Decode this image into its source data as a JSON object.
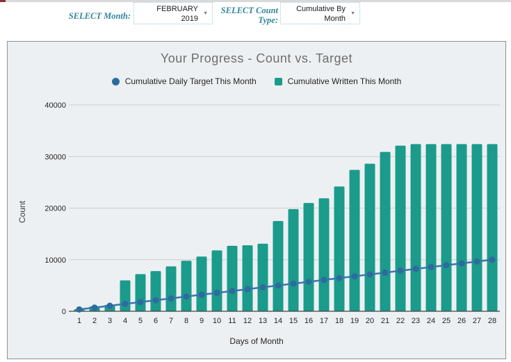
{
  "page": {
    "top_strip_color": "#d9d9d9",
    "red_indicator_color": "#8b2f36"
  },
  "slicers": {
    "month": {
      "label": "SELECT Month:",
      "value_lines": [
        "FEBRUARY",
        "2019"
      ],
      "arrow": "▼"
    },
    "count_type": {
      "label_lines": [
        "SELECT Count",
        "Type:"
      ],
      "value_lines": [
        "Cumulative By",
        "Month"
      ],
      "arrow": "▼"
    }
  },
  "chart_data": {
    "type": "bar",
    "title": "Your Progress - Count vs. Target",
    "xlabel": "Days of Month",
    "ylabel": "Count",
    "ylim": [
      0,
      40000
    ],
    "yticks": [
      0,
      10000,
      20000,
      30000,
      40000
    ],
    "grid": true,
    "legend_position": "top",
    "categories": [
      1,
      2,
      3,
      4,
      5,
      6,
      7,
      8,
      9,
      10,
      11,
      12,
      13,
      14,
      15,
      16,
      17,
      18,
      19,
      20,
      21,
      22,
      23,
      24,
      25,
      26,
      27,
      28
    ],
    "series": [
      {
        "name": "Cumulative Daily Target This Month",
        "type": "line",
        "marker": "circle",
        "color": "#2d6b9f",
        "line_color": "#3a76ab",
        "values": [
          357,
          714,
          1071,
          1429,
          1786,
          2143,
          2500,
          2857,
          3214,
          3571,
          3929,
          4286,
          4643,
          5000,
          5357,
          5714,
          6071,
          6429,
          6786,
          7143,
          7500,
          7857,
          8214,
          8571,
          8929,
          9286,
          9643,
          10000
        ]
      },
      {
        "name": "Cumulative Written This Month",
        "type": "bar",
        "marker": "square",
        "color": "#1a9b8b",
        "values": [
          400,
          950,
          1250,
          6000,
          7200,
          7800,
          8700,
          9800,
          10600,
          11800,
          12700,
          12800,
          13100,
          17500,
          19800,
          21000,
          21900,
          24200,
          27400,
          28600,
          30900,
          32100,
          32400,
          32400,
          32400,
          32400,
          32400,
          32400
        ]
      }
    ]
  }
}
